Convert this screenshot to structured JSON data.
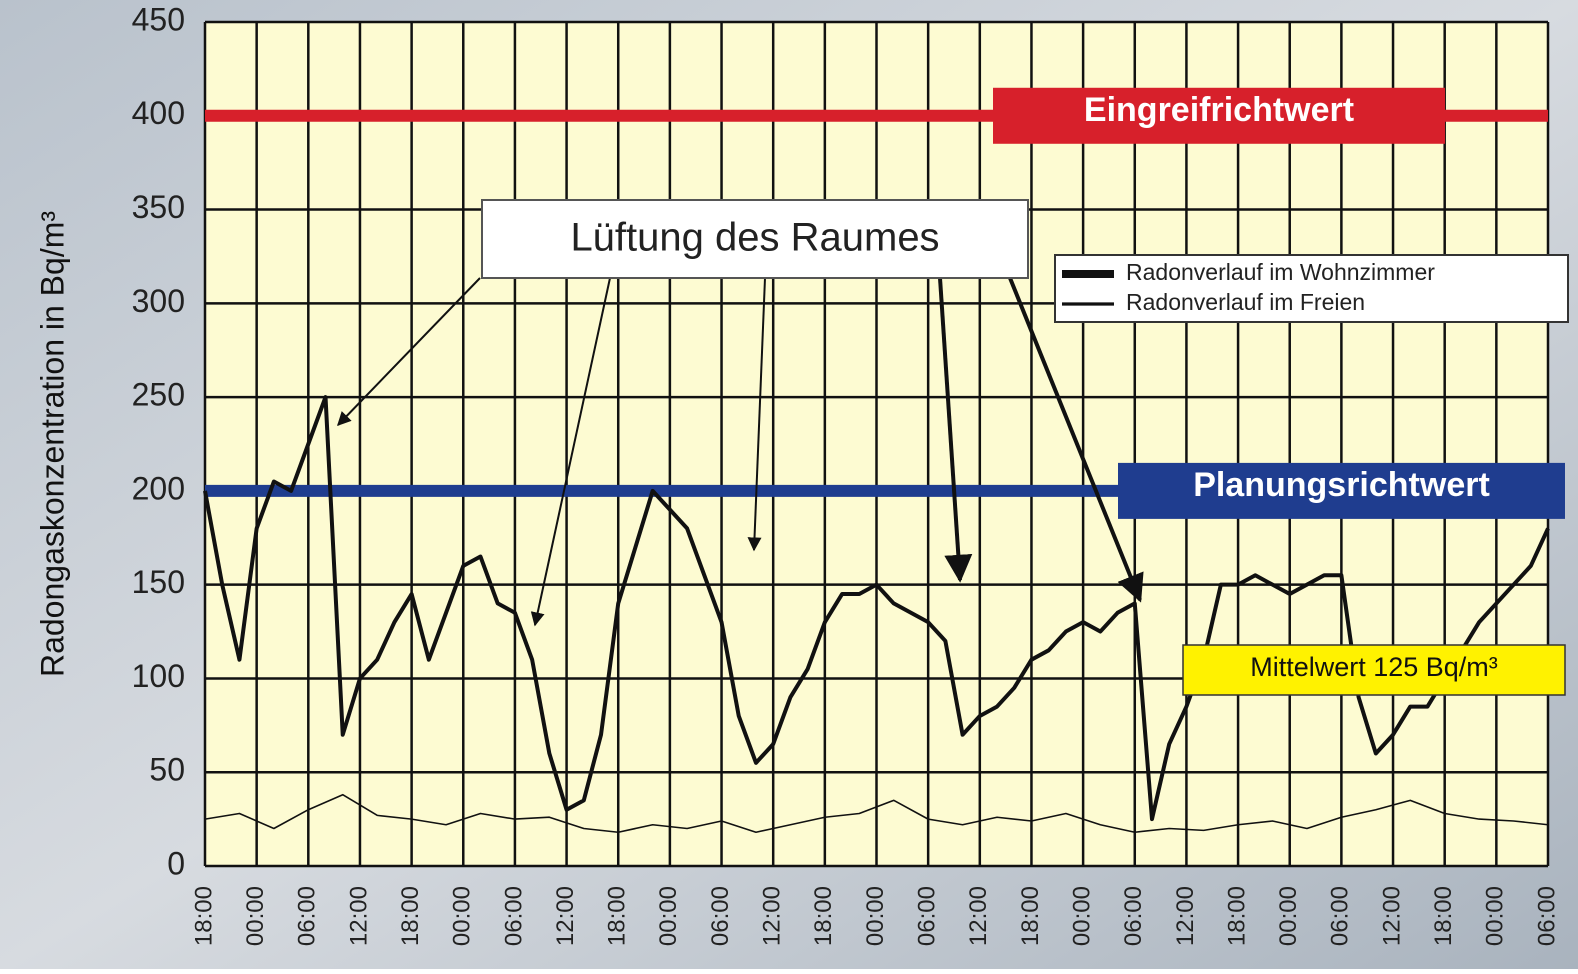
{
  "chart_data": {
    "type": "line",
    "y_label": "Radongaskonzentration in Bq/m³",
    "xlim": [
      0,
      156
    ],
    "xticks": [
      {
        "value": 0,
        "label": "18:00"
      },
      {
        "value": 6,
        "label": "00:00"
      },
      {
        "value": 12,
        "label": "06:00"
      },
      {
        "value": 18,
        "label": "12:00"
      },
      {
        "value": 24,
        "label": "18:00"
      },
      {
        "value": 30,
        "label": "00:00"
      },
      {
        "value": 36,
        "label": "06:00"
      },
      {
        "value": 42,
        "label": "12:00"
      },
      {
        "value": 48,
        "label": "18:00"
      },
      {
        "value": 54,
        "label": "00:00"
      },
      {
        "value": 60,
        "label": "06:00"
      },
      {
        "value": 66,
        "label": "12:00"
      },
      {
        "value": 72,
        "label": "18:00"
      },
      {
        "value": 78,
        "label": "00:00"
      },
      {
        "value": 84,
        "label": "06:00"
      },
      {
        "value": 90,
        "label": "12:00"
      },
      {
        "value": 96,
        "label": "18:00"
      },
      {
        "value": 102,
        "label": "00:00"
      },
      {
        "value": 108,
        "label": "06:00"
      },
      {
        "value": 114,
        "label": "12:00"
      },
      {
        "value": 120,
        "label": "18:00"
      },
      {
        "value": 126,
        "label": "00:00"
      },
      {
        "value": 132,
        "label": "06:00"
      },
      {
        "value": 138,
        "label": "12:00"
      },
      {
        "value": 144,
        "label": "18:00"
      },
      {
        "value": 150,
        "label": "00:00"
      },
      {
        "value": 156,
        "label": "06:00"
      }
    ],
    "ylim": [
      0,
      450
    ],
    "yticks": [
      0,
      50,
      100,
      150,
      200,
      250,
      300,
      350,
      400,
      450
    ],
    "grid": true,
    "series": [
      {
        "name": "Radonverlauf im Wohnzimmer",
        "color": "#111111",
        "width": 4,
        "x": [
          0,
          2,
          4,
          6,
          8,
          10,
          12,
          14,
          16,
          18,
          20,
          22,
          24,
          26,
          28,
          30,
          32,
          34,
          36,
          38,
          40,
          42,
          44,
          46,
          48,
          50,
          52,
          54,
          56,
          58,
          60,
          62,
          64,
          66,
          68,
          70,
          72,
          74,
          76,
          78,
          80,
          82,
          84,
          86,
          88,
          90,
          92,
          94,
          96,
          98,
          100,
          102,
          104,
          106,
          108,
          110,
          112,
          114,
          116,
          118,
          120,
          122,
          124,
          126,
          128,
          130,
          132,
          134,
          136,
          138,
          140,
          142,
          144,
          146,
          148,
          150,
          152,
          154,
          156
        ],
        "values": [
          200,
          150,
          110,
          180,
          205,
          200,
          225,
          250,
          70,
          100,
          110,
          130,
          145,
          110,
          135,
          160,
          165,
          140,
          135,
          110,
          60,
          30,
          35,
          70,
          140,
          170,
          200,
          190,
          180,
          155,
          130,
          80,
          55,
          65,
          90,
          105,
          130,
          145,
          145,
          150,
          140,
          135,
          130,
          120,
          70,
          80,
          85,
          95,
          110,
          115,
          125,
          130,
          125,
          135,
          140,
          25,
          65,
          85,
          110,
          150,
          150,
          155,
          150,
          145,
          150,
          155,
          155,
          90,
          60,
          70,
          85,
          85,
          100,
          115,
          130,
          140,
          150,
          160,
          180
        ]
      },
      {
        "name": "Radonverlauf im Freien",
        "color": "#111111",
        "width": 1.6,
        "x": [
          0,
          4,
          8,
          12,
          16,
          20,
          24,
          28,
          32,
          36,
          40,
          44,
          48,
          52,
          56,
          60,
          64,
          68,
          72,
          76,
          80,
          84,
          88,
          92,
          96,
          100,
          104,
          108,
          112,
          116,
          120,
          124,
          128,
          132,
          136,
          140,
          144,
          148,
          152,
          156
        ],
        "values": [
          25,
          28,
          20,
          30,
          38,
          27,
          25,
          22,
          28,
          25,
          26,
          20,
          18,
          22,
          20,
          24,
          18,
          22,
          26,
          28,
          35,
          25,
          22,
          26,
          24,
          28,
          22,
          18,
          20,
          19,
          22,
          24,
          20,
          26,
          30,
          35,
          28,
          25,
          24,
          22
        ]
      }
    ],
    "reference_lines": [
      {
        "value": 400,
        "label": "Eingreifrichtwert",
        "color": "#d7202b"
      },
      {
        "value": 200,
        "label": "Planungsrichtwert",
        "color": "#1f3d8f"
      }
    ],
    "annotations": [
      "Lüftung des Raumes",
      "Mittelwert 125 Bq/m³"
    ]
  }
}
